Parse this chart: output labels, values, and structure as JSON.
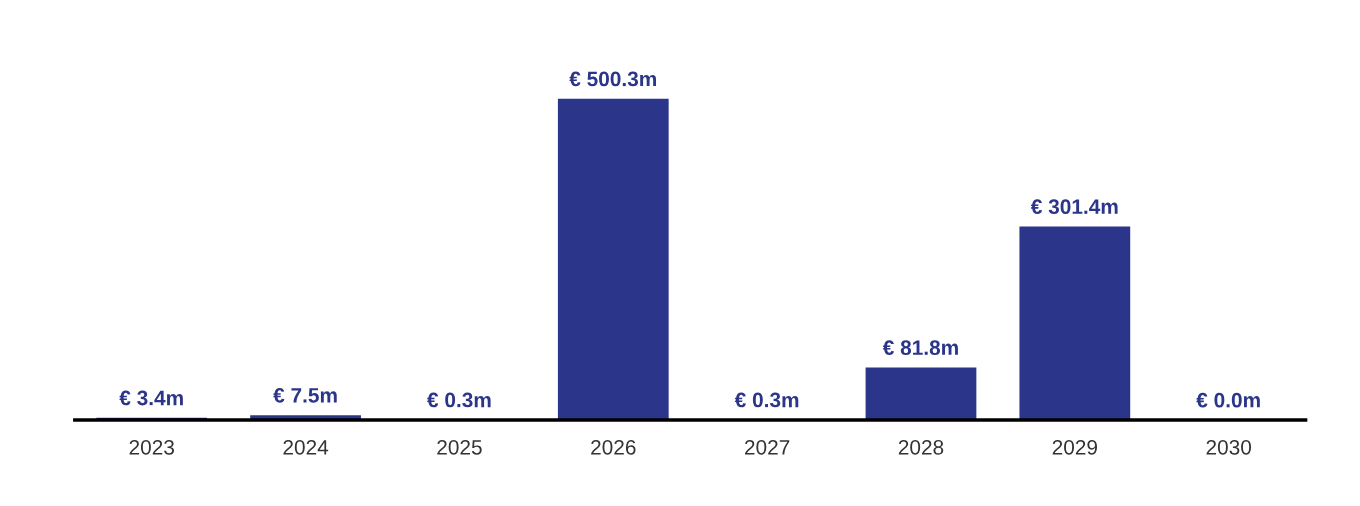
{
  "chart_data": {
    "type": "bar",
    "categories": [
      "2023",
      "2024",
      "2025",
      "2026",
      "2027",
      "2028",
      "2029",
      "2030"
    ],
    "values": [
      3.4,
      7.5,
      0.3,
      500.3,
      0.3,
      81.8,
      301.4,
      0.0
    ],
    "colors": [
      "#2b3589",
      "#2b3589",
      "#2b3589",
      "#2b3589",
      "#2a8a78",
      "#2b3589",
      "#2b3589",
      "#2b3589"
    ],
    "value_labels": [
      "€ 3.4m",
      "€ 7.5m",
      "€ 0.3m",
      "€ 500.3m",
      "€ 0.3m",
      "€ 81.8m",
      "€ 301.4m",
      "€ 0.0m"
    ],
    "tick_labels": "x"
  }
}
